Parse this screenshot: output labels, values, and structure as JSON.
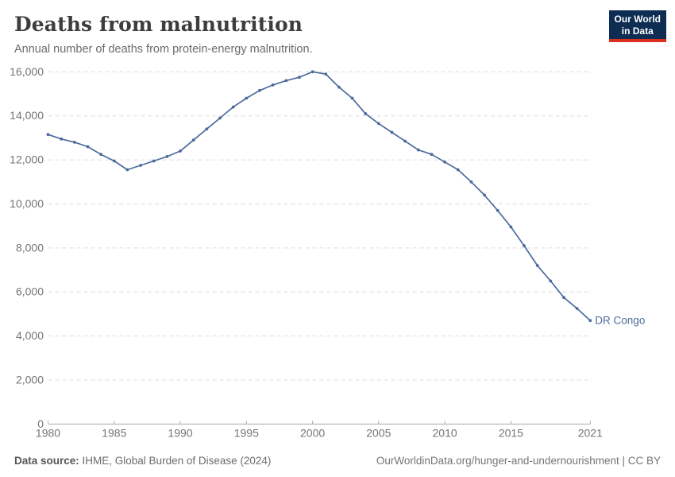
{
  "header": {
    "title": "Deaths from malnutrition",
    "subtitle": "Annual number of deaths from protein-energy malnutrition."
  },
  "logo": {
    "line1": "Our World",
    "line2": "in Data",
    "bg_color": "#0d2d52",
    "bar_color": "#dc2f1f"
  },
  "chart_data": {
    "type": "line",
    "title": "Deaths from malnutrition",
    "subtitle": "Annual number of deaths from protein-energy malnutrition.",
    "x": [
      1980,
      1981,
      1982,
      1983,
      1984,
      1985,
      1986,
      1987,
      1988,
      1989,
      1990,
      1991,
      1992,
      1993,
      1994,
      1995,
      1996,
      1997,
      1998,
      1999,
      2000,
      2001,
      2002,
      2003,
      2004,
      2005,
      2006,
      2007,
      2008,
      2009,
      2010,
      2011,
      2012,
      2013,
      2014,
      2015,
      2016,
      2017,
      2018,
      2019,
      2020,
      2021
    ],
    "series": [
      {
        "name": "DR Congo",
        "color": "#4c6a9c",
        "values": [
          13150,
          12950,
          12800,
          12600,
          12250,
          11950,
          11550,
          11750,
          11950,
          12150,
          12400,
          12900,
          13400,
          13900,
          14400,
          14800,
          15150,
          15400,
          15600,
          15750,
          16000,
          15900,
          15300,
          14800,
          14100,
          13650,
          13250,
          12850,
          12450,
          12250,
          11900,
          11550,
          11000,
          10400,
          9700,
          8950,
          8100,
          7200,
          6500,
          5750,
          5250,
          4700
        ]
      }
    ],
    "end_label": "DR Congo",
    "xlim": [
      1980,
      2021
    ],
    "ylim": [
      0,
      16000
    ],
    "xticks": [
      1980,
      1985,
      1990,
      1995,
      2000,
      2005,
      2010,
      2015,
      2021
    ],
    "yticks": [
      0,
      2000,
      4000,
      6000,
      8000,
      10000,
      12000,
      14000,
      16000
    ],
    "grid": "horizontal-dashed",
    "legend": "line-end-label"
  },
  "colors": {
    "line": "#4c6a9c",
    "grid": "#dcdcdc",
    "axis": "#a8a8a8",
    "tick_label": "#757575",
    "title": "#3d3d3d",
    "subtitle": "#6b6b6b",
    "footer": "#6d6d6d"
  },
  "footer": {
    "source_label": "Data source:",
    "source_text": " IHME, Global Burden of Disease (2024)",
    "credit": "OurWorldinData.org/hunger-and-undernourishment | CC BY"
  }
}
